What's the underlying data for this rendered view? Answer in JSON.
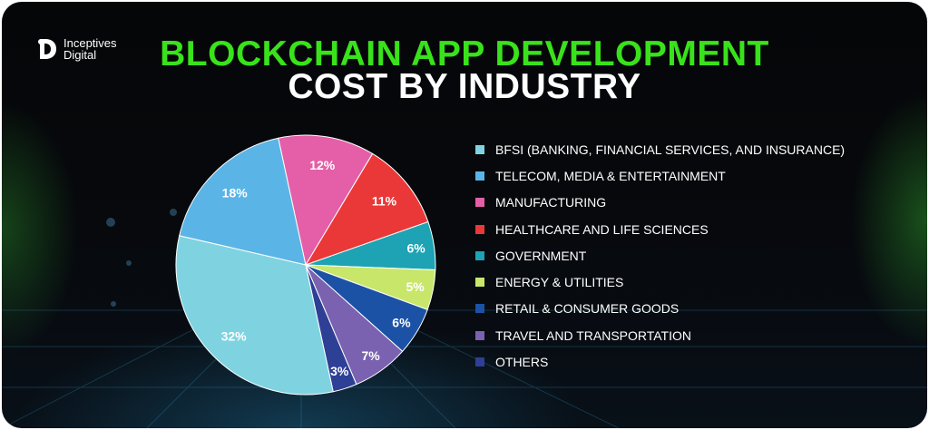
{
  "brand": {
    "name_line1": "Inceptives",
    "name_line2": "Digital"
  },
  "title": {
    "line1": "BLOCKCHAIN APP DEVELOPMENT",
    "line2": "COST BY INDUSTRY"
  },
  "chart_data": {
    "type": "pie",
    "slices": [
      {
        "label": "BFSI (BANKING, FINANCIAL SERVICES, AND INSURANCE)",
        "value": 32,
        "display": "32%",
        "color": "#7fd3e0"
      },
      {
        "label": "TELECOM, MEDIA & ENTERTAINMENT",
        "value": 18,
        "display": "18%",
        "color": "#5bb4e6"
      },
      {
        "label": "MANUFACTURING",
        "value": 12,
        "display": "12%",
        "color": "#e45fa7"
      },
      {
        "label": "HEALTHCARE AND LIFE SCIENCES",
        "value": 11,
        "display": "11%",
        "color": "#ea3838"
      },
      {
        "label": "GOVERNMENT",
        "value": 6,
        "display": "6%",
        "color": "#1da3b3"
      },
      {
        "label": "ENERGY & UTILITIES",
        "value": 5,
        "display": "5%",
        "color": "#c8e66a"
      },
      {
        "label": "RETAIL & CONSUMER GOODS",
        "value": 6,
        "display": "6%",
        "color": "#1b52a6"
      },
      {
        "label": "TRAVEL AND TRANSPORTATION",
        "value": 7,
        "display": "7%",
        "color": "#7a62b0"
      },
      {
        "label": "OTHERS",
        "value": 3,
        "display": "3%",
        "color": "#2e3f96"
      }
    ],
    "legend_position": "right"
  }
}
